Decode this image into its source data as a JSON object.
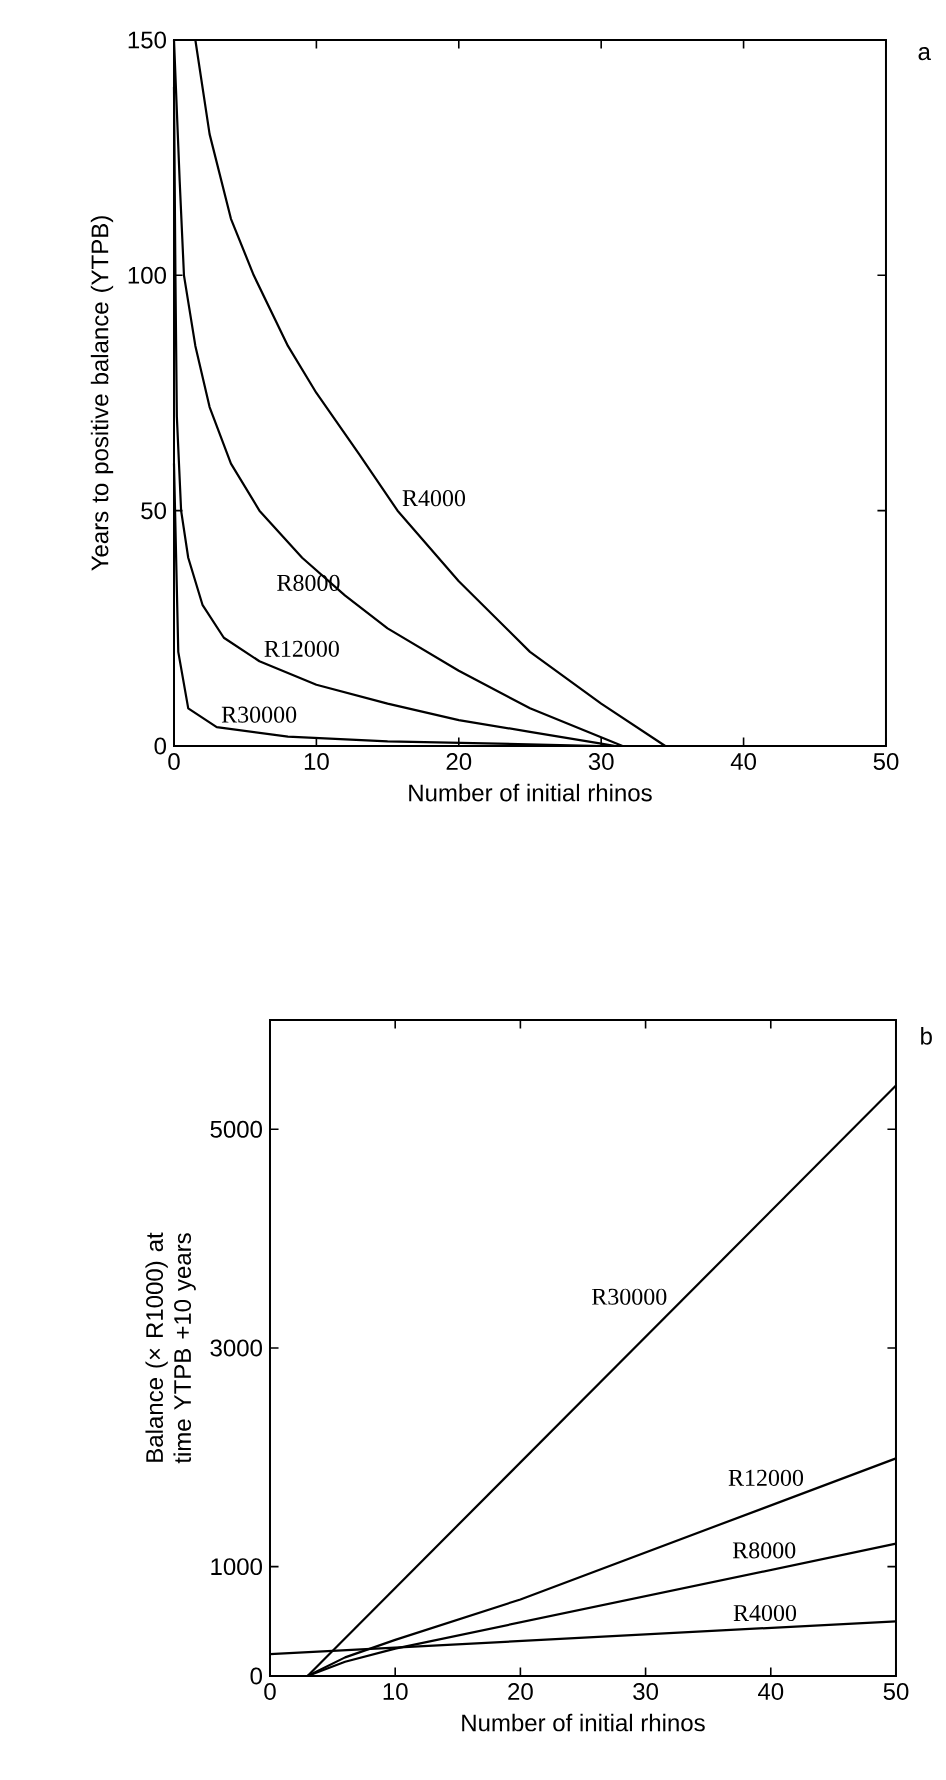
{
  "chart_data": [
    {
      "type": "line",
      "xlabel": "Number of initial rhinos",
      "ylabel": "Years to positive balance (YTPB)",
      "xlim": [
        0,
        50
      ],
      "ylim": [
        0,
        150
      ],
      "xticks": [
        0,
        10,
        20,
        30,
        40,
        50
      ],
      "yticks": [
        0,
        50,
        100,
        150
      ],
      "grid": false,
      "legend": false,
      "marker": "none",
      "line_style": "solid",
      "annotations": [
        "a"
      ],
      "series": [
        {
          "name": "R4000",
          "color": "#000000",
          "x": [
            1.5,
            2.5,
            4,
            5.6,
            8,
            10,
            13,
            15.7,
            20,
            25,
            30,
            34.5
          ],
          "values": [
            150,
            130,
            112,
            100,
            85,
            75,
            62,
            50,
            35,
            20,
            9,
            0
          ]
        },
        {
          "name": "R8000",
          "color": "#000000",
          "x": [
            0,
            0.4,
            0.7,
            1.5,
            2.5,
            4,
            6,
            9,
            12,
            15,
            20,
            25,
            31.5
          ],
          "values": [
            150,
            120,
            100,
            85,
            72,
            60,
            50,
            40,
            32,
            25,
            16,
            8,
            0
          ]
        },
        {
          "name": "R12000",
          "color": "#000000",
          "x": [
            0,
            0.1,
            0.2,
            0.5,
            1,
            2,
            3.5,
            6,
            10,
            15,
            20,
            25,
            30,
            31
          ],
          "values": [
            140,
            100,
            70,
            50,
            40,
            30,
            23,
            18,
            13,
            9,
            5.5,
            3,
            0.5,
            0
          ]
        },
        {
          "name": "R30000",
          "color": "#000000",
          "x": [
            0,
            0.3,
            1,
            3,
            8,
            15,
            30
          ],
          "values": [
            60,
            20,
            8,
            4,
            2,
            1,
            0
          ]
        }
      ]
    },
    {
      "type": "line",
      "xlabel": "Number of initial rhinos",
      "ylabel": "Balance (× R1000) at time YTPB +10 years",
      "xlim": [
        0,
        50
      ],
      "ylim": [
        0,
        6000
      ],
      "xticks": [
        0,
        10,
        20,
        30,
        40,
        50
      ],
      "yticks": [
        0,
        1000,
        3000,
        5000
      ],
      "grid": false,
      "legend": false,
      "marker": "none",
      "line_style": "solid",
      "annotations": [
        "b"
      ],
      "series": [
        {
          "name": "R30000",
          "color": "#000000",
          "x": [
            3,
            50
          ],
          "values": [
            0,
            5400
          ]
        },
        {
          "name": "R12000",
          "color": "#000000",
          "x": [
            3,
            6,
            10,
            20,
            50
          ],
          "values": [
            0,
            170,
            330,
            700,
            1990
          ]
        },
        {
          "name": "R8000",
          "color": "#000000",
          "x": [
            3,
            6,
            10,
            50
          ],
          "values": [
            0,
            130,
            250,
            1210
          ]
        },
        {
          "name": "R4000",
          "color": "#000000",
          "x": [
            0,
            50
          ],
          "values": [
            200,
            500
          ]
        }
      ]
    }
  ]
}
